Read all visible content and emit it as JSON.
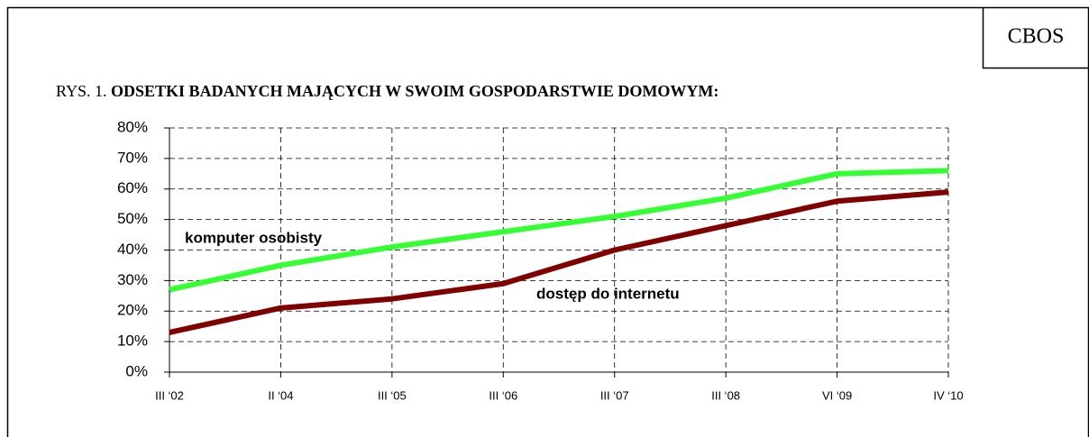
{
  "brand": "CBOS",
  "chart_data": {
    "type": "line",
    "figure_label": "RYS. 1.",
    "title": "ODSETKI BADANYCH MAJĄCYCH W SWOIM GOSPODARSTWIE DOMOWYM:",
    "categories": [
      "III ‘02",
      "II ‘04",
      "III ‘05",
      "III ‘06",
      "III ‘07",
      "III ‘08",
      "VI ‘09",
      "IV ‘10"
    ],
    "series": [
      {
        "name": "komputer osobisty",
        "color": "#33ff33",
        "values": [
          27,
          35,
          41,
          46,
          51,
          57,
          65,
          66
        ]
      },
      {
        "name": "dostęp do internetu",
        "color": "#800000",
        "values": [
          13,
          21,
          24,
          29,
          40,
          48,
          56,
          59
        ]
      }
    ],
    "ylim": [
      0,
      80
    ],
    "yticks": [
      {
        "value": 0,
        "label": "0%"
      },
      {
        "value": 10,
        "label": "10%"
      },
      {
        "value": 20,
        "label": "20%"
      },
      {
        "value": 30,
        "label": "30%"
      },
      {
        "value": 40,
        "label": "40%"
      },
      {
        "value": 50,
        "label": "50%"
      },
      {
        "value": 60,
        "label": "60%"
      },
      {
        "value": 70,
        "label": "70%"
      },
      {
        "value": 80,
        "label": "80%"
      }
    ],
    "grid": true
  }
}
